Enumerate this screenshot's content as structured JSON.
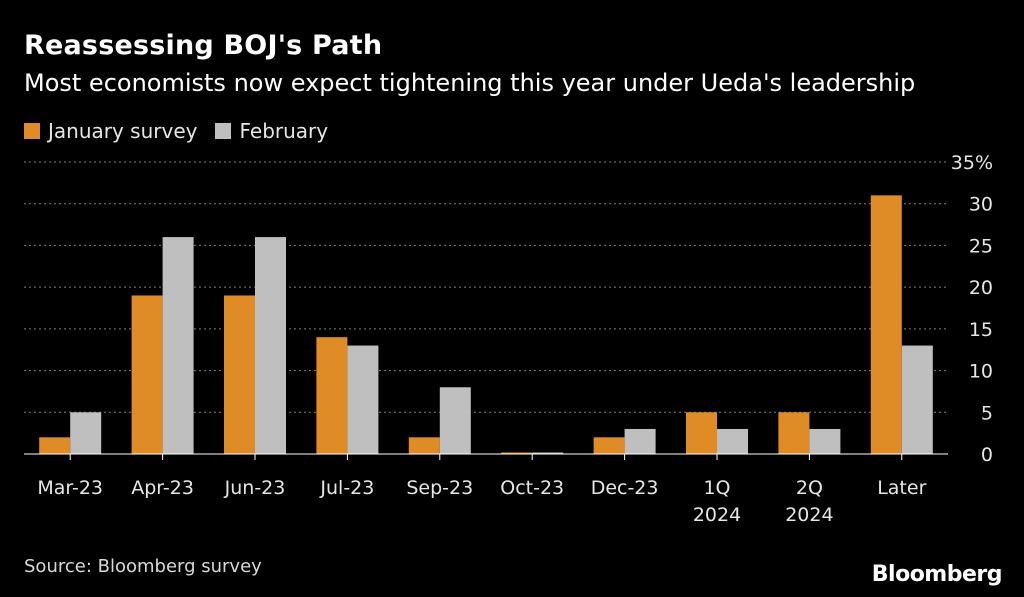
{
  "header": {
    "title": "Reassessing BOJ's Path",
    "subtitle": "Most economists now expect tightening this year under Ueda's leadership"
  },
  "legend": {
    "items": [
      {
        "label": "January survey",
        "color": "#E08C26"
      },
      {
        "label": "February",
        "color": "#BFBFBF"
      }
    ]
  },
  "footer": {
    "source": "Source: Bloomberg survey",
    "logo": "Bloomberg"
  },
  "colors": {
    "background": "#000000",
    "january": "#E08C26",
    "february": "#BFBFBF",
    "grid": "#7f7f7f",
    "text": "#E6E6E6"
  },
  "chart_data": {
    "type": "bar",
    "title": "Reassessing BOJ's Path",
    "subtitle": "Most economists now expect tightening this year under Ueda's leadership",
    "categories": [
      [
        "Mar-23"
      ],
      [
        "Apr-23"
      ],
      [
        "Jun-23"
      ],
      [
        "Jul-23"
      ],
      [
        "Sep-23"
      ],
      [
        "Oct-23"
      ],
      [
        "Dec-23"
      ],
      [
        "1Q",
        "2024"
      ],
      [
        "2Q",
        "2024"
      ],
      [
        "Later"
      ]
    ],
    "series": [
      {
        "name": "January survey",
        "values": [
          2,
          19,
          19,
          14,
          2,
          0,
          2,
          5,
          5,
          31
        ]
      },
      {
        "name": "February",
        "values": [
          5,
          26,
          26,
          13,
          8,
          0,
          3,
          3,
          3,
          13
        ]
      }
    ],
    "yticks": [
      0,
      5,
      10,
      15,
      20,
      25,
      30,
      35
    ],
    "ytick_labels": [
      "0",
      "5",
      "10",
      "15",
      "20",
      "25",
      "30",
      "35%"
    ],
    "ylim": [
      0,
      35
    ],
    "xlabel": "",
    "ylabel": "",
    "grid": true,
    "legend_position": "top-left"
  }
}
